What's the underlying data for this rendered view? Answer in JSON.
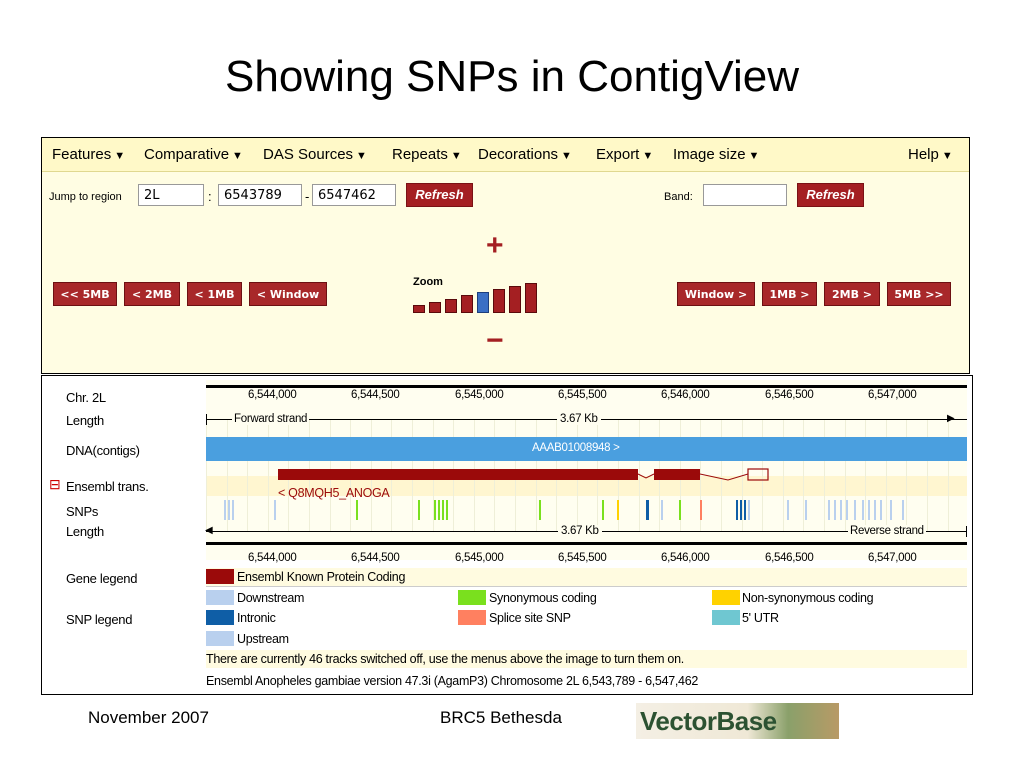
{
  "slide": {
    "title": "Showing SNPs in ContigView",
    "footer_left": "November 2007",
    "footer_center": "BRC5 Bethesda",
    "logo_text": "VectorBase"
  },
  "menu": {
    "items": [
      "Features",
      "Comparative",
      "DAS Sources",
      "Repeats",
      "Decorations",
      "Export",
      "Image size"
    ],
    "help": "Help"
  },
  "jump": {
    "label": "Jump to region",
    "chromosome": "2L",
    "colon": ":",
    "start": "6543789",
    "dash": "-",
    "end": "6547462",
    "refresh": "Refresh",
    "band_label": "Band:",
    "band_value": "",
    "band_refresh": "Refresh"
  },
  "nav": {
    "left": [
      "<< 5MB",
      "< 2MB",
      "< 1MB",
      "< Window"
    ],
    "right": [
      "Window >",
      "1MB >",
      "2MB >",
      "5MB >>"
    ],
    "zoom_label": "Zoom",
    "zoom_in": "+",
    "zoom_out": "−",
    "zoom_levels": 8,
    "zoom_selected": 4
  },
  "detail": {
    "chr_label": "Chr. 2L",
    "length_label": "Length",
    "dna_label": "DNA(contigs)",
    "trans_label": "Ensembl trans.",
    "snps_label": "SNPs",
    "length_label2": "Length",
    "gene_legend_label": "Gene legend",
    "snp_legend_label": "SNP legend",
    "ticks": [
      "6,544,000",
      "6,544,500",
      "6,545,000",
      "6,545,500",
      "6,546,000",
      "6,546,500",
      "6,547,000"
    ],
    "forward_strand": "Forward strand",
    "reverse_strand": "Reverse strand",
    "length_kb": "3.67 Kb",
    "contig_name": "AAAB01008948 >",
    "transcript_name": "< Q8MQH5_ANOGA",
    "collapse_icon": "⊟",
    "colors": {
      "contig": "#4a9fdf",
      "transcript": "#9b0a0a",
      "downstream": "#b9d0ee",
      "synonymous": "#7ae01e",
      "nonsynonymous": "#ffd200",
      "intronic": "#0f5ea6",
      "splice": "#ff8060",
      "utr5": "#6fc7d1",
      "upstream": "#b9d0ee"
    },
    "gene_legend": [
      {
        "label": "Ensembl Known Protein Coding",
        "color": "#9b0a0a"
      }
    ],
    "snp_legend": [
      {
        "label": "Downstream",
        "color": "#b9d0ee"
      },
      {
        "label": "Synonymous coding",
        "color": "#7ae01e"
      },
      {
        "label": "Non-synonymous coding",
        "color": "#ffd200"
      },
      {
        "label": "Intronic",
        "color": "#0f5ea6"
      },
      {
        "label": "Splice site SNP",
        "color": "#ff8060"
      },
      {
        "label": "5' UTR",
        "color": "#6fc7d1"
      },
      {
        "label": "Upstream",
        "color": "#b9d0ee"
      }
    ],
    "tracks_info": "There are currently 46 tracks switched off, use the menus above the image to turn them on.",
    "version_info": "Ensembl Anopheles gambiae version 47.3i (AgamP3) Chromosome 2L 6,543,789 - 6,547,462"
  }
}
